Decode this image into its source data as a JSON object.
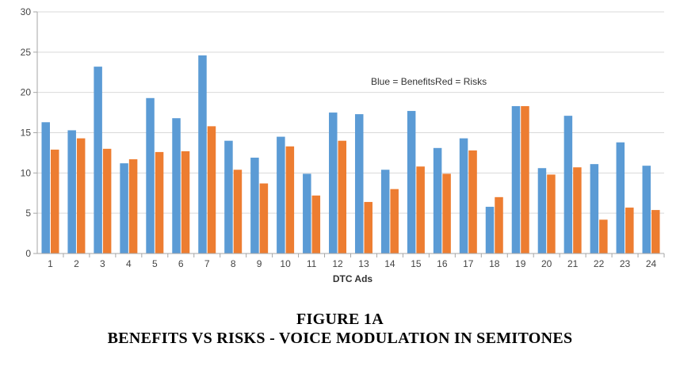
{
  "figure": {
    "label": "FIGURE 1A",
    "caption": "BENEFITS VS RISKS - VOICE MODULATION IN SEMITONES"
  },
  "chart_data": {
    "type": "bar",
    "xlabel": "DTC Ads",
    "ylabel": "",
    "ylim": [
      0,
      30
    ],
    "yticks": [
      0,
      5,
      10,
      15,
      20,
      25,
      30
    ],
    "grid": true,
    "annotation": "Blue = BenefitsRed = Risks",
    "categories": [
      "1",
      "2",
      "3",
      "4",
      "5",
      "6",
      "7",
      "8",
      "9",
      "10",
      "11",
      "12",
      "13",
      "14",
      "15",
      "16",
      "17",
      "18",
      "19",
      "20",
      "21",
      "22",
      "23",
      "24"
    ],
    "series": [
      {
        "color": "#5b9bd5",
        "values": [
          16.3,
          15.3,
          23.2,
          11.2,
          19.3,
          16.8,
          24.6,
          14.0,
          11.9,
          14.5,
          9.9,
          17.5,
          17.3,
          10.4,
          17.7,
          13.1,
          14.3,
          5.8,
          18.3,
          10.6,
          17.1,
          11.1,
          13.8,
          10.9
        ]
      },
      {
        "color": "#ed7d31",
        "values": [
          12.9,
          14.3,
          13.0,
          11.7,
          12.6,
          12.7,
          15.8,
          10.4,
          8.7,
          13.3,
          7.2,
          14.0,
          6.4,
          8.0,
          10.8,
          9.9,
          12.8,
          7.0,
          18.3,
          9.8,
          10.7,
          4.2,
          5.7,
          5.4
        ]
      }
    ]
  }
}
